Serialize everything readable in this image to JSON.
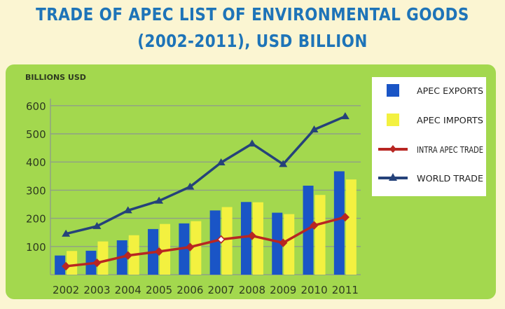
{
  "header": {
    "title_line1": "TRADE OF APEC LIST OF ENVIRONMENTAL GOODS",
    "title_line2": "(2002-2011), USD BILLION"
  },
  "colors": {
    "page_bg": "#fbf5d2",
    "panel_bg": "#a3d84e",
    "grid": "#8f9f87",
    "exports": "#1a55c6",
    "imports": "#f3f140",
    "intra": "#b82622",
    "world": "#25427a",
    "title": "#1e74b8"
  },
  "chart_data": {
    "type": "bar",
    "title": "TRADE OF APEC LIST OF ENVIRONMENTAL GOODS (2002-2011), USD BILLION",
    "ylabel": "BILLIONS USD",
    "xlabel": "",
    "ylim": [
      0,
      650
    ],
    "yticks": [
      100,
      200,
      300,
      400,
      500,
      600
    ],
    "categories": [
      "2002",
      "2003",
      "2004",
      "2005",
      "2006",
      "2007",
      "2008",
      "2009",
      "2010",
      "2011"
    ],
    "series": [
      {
        "name": "APEC EXPORTS",
        "type": "bar",
        "color": "#1a55c6",
        "values": [
          68,
          85,
          122,
          162,
          182,
          228,
          258,
          220,
          316,
          367
        ]
      },
      {
        "name": "APEC IMPORTS",
        "type": "bar",
        "color": "#f3f140",
        "values": [
          84,
          118,
          140,
          180,
          190,
          240,
          257,
          215,
          283,
          338
        ]
      },
      {
        "name": "INTRA APEC TRADE",
        "type": "line",
        "marker": "diamond",
        "color": "#b82622",
        "values": [
          30,
          42,
          68,
          82,
          98,
          125,
          138,
          113,
          175,
          204
        ]
      },
      {
        "name": "WORLD TRADE",
        "type": "line",
        "marker": "triangle",
        "color": "#25427a",
        "values": [
          145,
          172,
          228,
          262,
          312,
          398,
          465,
          392,
          515,
          562
        ]
      }
    ],
    "legend_position": "top-right"
  }
}
